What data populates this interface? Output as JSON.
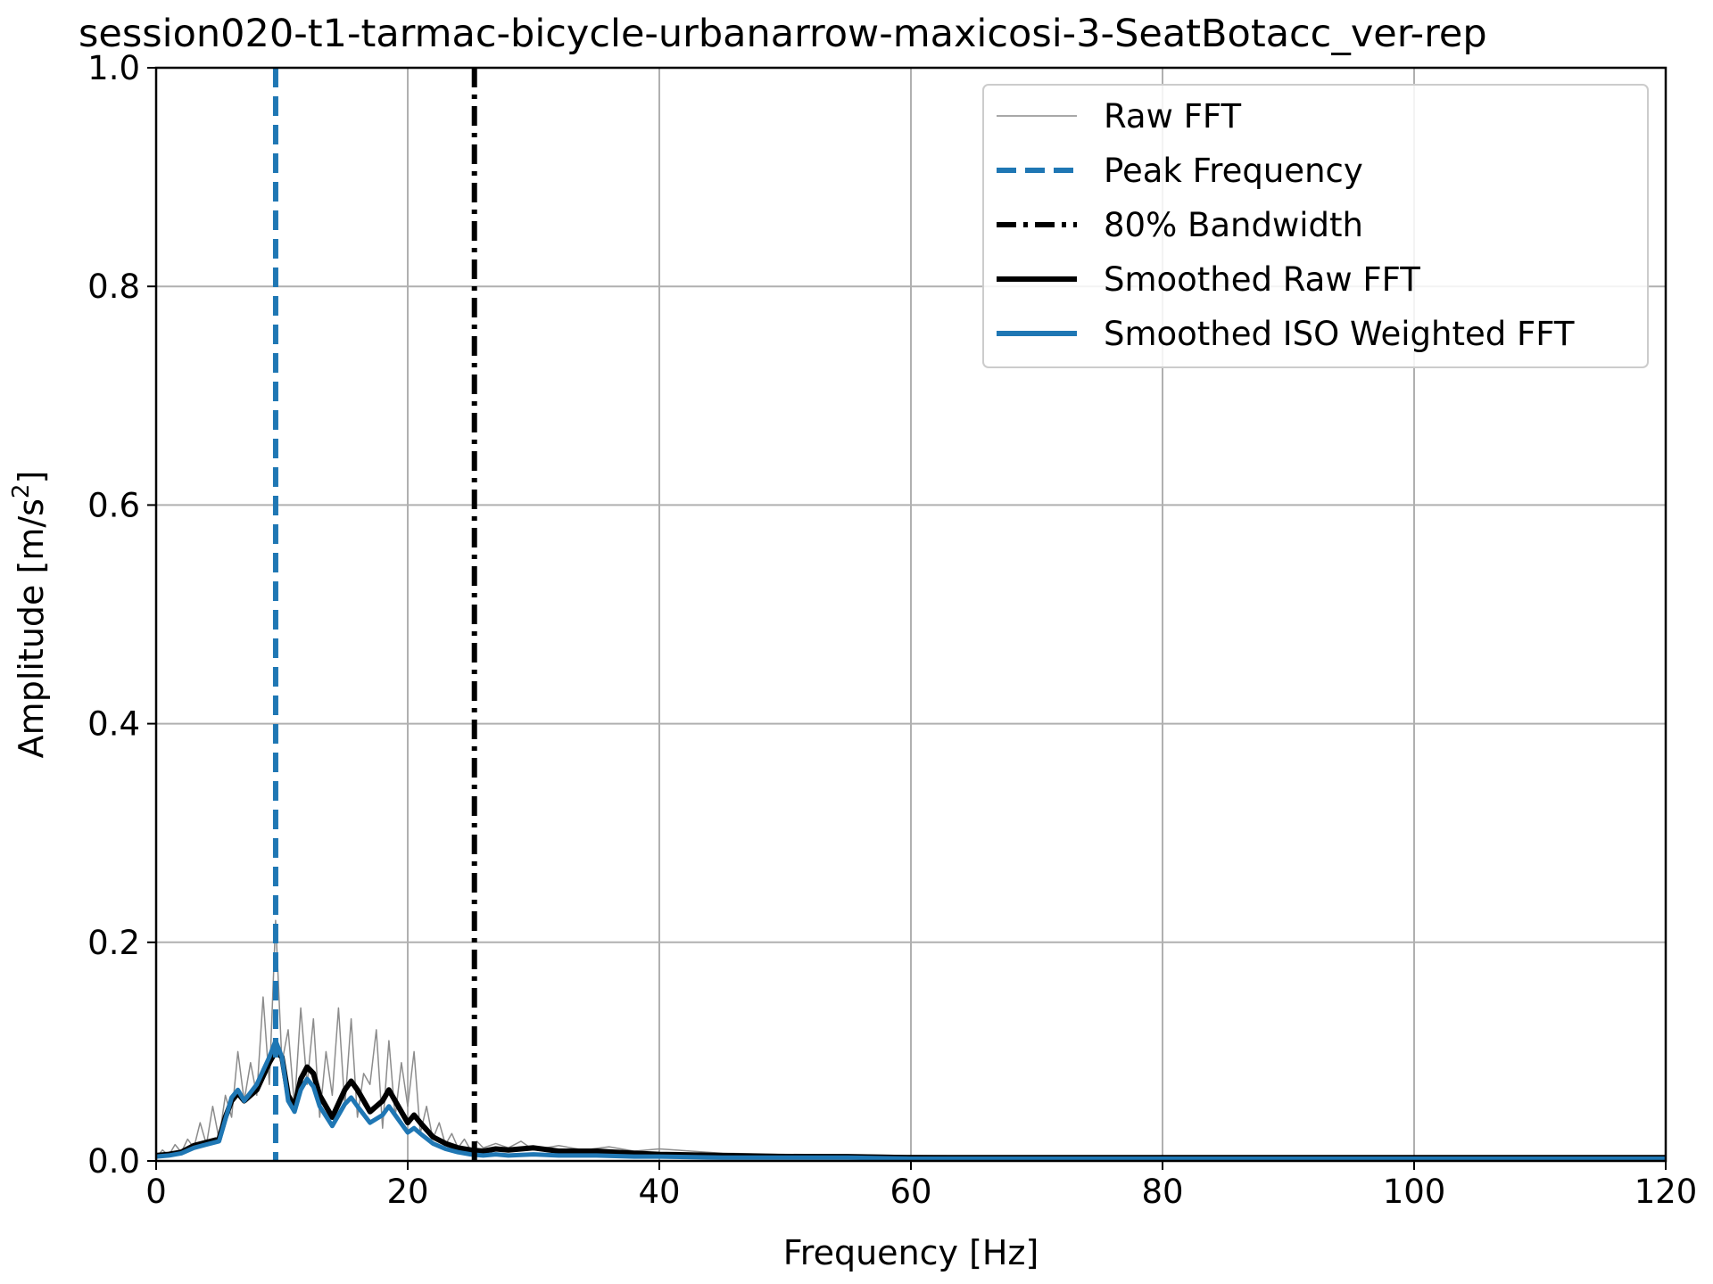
{
  "chart_data": {
    "type": "line",
    "title": "session020-t1-tarmac-bicycle-urbanarrow-maxicosi-3-SeatBotacc_ver-rep",
    "xlabel": "Frequency [Hz]",
    "ylabel_main": "Amplitude [m/s",
    "ylabel_sup": "2",
    "ylabel_close": "]",
    "xlim": [
      0,
      120
    ],
    "ylim": [
      0,
      1.0
    ],
    "xticks": [
      0,
      20,
      40,
      60,
      80,
      100,
      120
    ],
    "xtick_labels": [
      "0",
      "20",
      "40",
      "60",
      "80",
      "100",
      "120"
    ],
    "yticks": [
      0.0,
      0.2,
      0.4,
      0.6,
      0.8,
      1.0
    ],
    "ytick_labels": [
      "0.0",
      "0.2",
      "0.4",
      "0.6",
      "0.8",
      "1.0"
    ],
    "grid": true,
    "legend_position": "upper right",
    "peak_frequency": 9.5,
    "bandwidth_80": 25.3,
    "colors": {
      "raw": "#8c8c8c",
      "peak": "#1f77b4",
      "bandwidth": "#000000",
      "smoothed_raw": "#000000",
      "smoothed_iso": "#1f77b4",
      "grid": "#b0b0b0"
    },
    "legend": [
      {
        "label": "Raw FFT",
        "key": "raw"
      },
      {
        "label": "Peak Frequency",
        "key": "peak"
      },
      {
        "label": "80% Bandwidth",
        "key": "bandwidth"
      },
      {
        "label": "Smoothed Raw FFT",
        "key": "smoothed_raw"
      },
      {
        "label": "Smoothed ISO Weighted FFT",
        "key": "smoothed_iso"
      }
    ],
    "series": [
      {
        "name": "Raw FFT",
        "key": "raw",
        "x": [
          0,
          0.5,
          1,
          1.5,
          2,
          2.5,
          3,
          3.5,
          4,
          4.5,
          5,
          5.5,
          6,
          6.5,
          7,
          7.5,
          8,
          8.5,
          9,
          9.5,
          10,
          10.5,
          11,
          11.5,
          12,
          12.5,
          13,
          13.5,
          14,
          14.5,
          15,
          15.5,
          16,
          16.5,
          17,
          17.5,
          18,
          18.5,
          19,
          19.5,
          20,
          20.5,
          21,
          21.5,
          22,
          22.5,
          23,
          23.5,
          24,
          24.5,
          25,
          25.5,
          26,
          27,
          28,
          29,
          30,
          32,
          34,
          36,
          38,
          40,
          45,
          50,
          60,
          70,
          80,
          90,
          100,
          110,
          120
        ],
        "y": [
          0.003,
          0.01,
          0.005,
          0.015,
          0.008,
          0.02,
          0.012,
          0.035,
          0.015,
          0.05,
          0.02,
          0.06,
          0.04,
          0.1,
          0.055,
          0.09,
          0.06,
          0.15,
          0.07,
          0.22,
          0.09,
          0.12,
          0.05,
          0.14,
          0.07,
          0.13,
          0.04,
          0.1,
          0.06,
          0.14,
          0.05,
          0.13,
          0.04,
          0.08,
          0.07,
          0.12,
          0.03,
          0.11,
          0.04,
          0.09,
          0.05,
          0.1,
          0.025,
          0.05,
          0.02,
          0.035,
          0.015,
          0.025,
          0.012,
          0.02,
          0.01,
          0.018,
          0.012,
          0.016,
          0.012,
          0.018,
          0.01,
          0.014,
          0.01,
          0.013,
          0.009,
          0.011,
          0.007,
          0.006,
          0.005,
          0.004,
          0.004,
          0.003,
          0.003,
          0.003,
          0.002
        ]
      },
      {
        "name": "Smoothed Raw FFT",
        "key": "smoothed_raw",
        "x": [
          0,
          1,
          2,
          3,
          4,
          5,
          5.5,
          6,
          6.5,
          7,
          8,
          9,
          9.5,
          10,
          10.5,
          11,
          11.5,
          12,
          12.5,
          13,
          14,
          15,
          15.5,
          16,
          17,
          18,
          18.5,
          19,
          20,
          20.5,
          21,
          22,
          23,
          24,
          25,
          26,
          27,
          28,
          30,
          32,
          35,
          38,
          40,
          45,
          50,
          55,
          60,
          70,
          80,
          90,
          100,
          110,
          120
        ],
        "y": [
          0.005,
          0.006,
          0.008,
          0.014,
          0.017,
          0.02,
          0.04,
          0.055,
          0.062,
          0.055,
          0.065,
          0.09,
          0.1,
          0.095,
          0.06,
          0.05,
          0.075,
          0.086,
          0.08,
          0.06,
          0.04,
          0.065,
          0.073,
          0.065,
          0.045,
          0.055,
          0.065,
          0.055,
          0.035,
          0.042,
          0.035,
          0.022,
          0.016,
          0.012,
          0.01,
          0.009,
          0.011,
          0.01,
          0.012,
          0.009,
          0.009,
          0.007,
          0.006,
          0.005,
          0.004,
          0.004,
          0.003,
          0.003,
          0.003,
          0.003,
          0.003,
          0.003,
          0.003
        ]
      },
      {
        "name": "Smoothed ISO Weighted FFT",
        "key": "smoothed_iso",
        "x": [
          0,
          1,
          2,
          3,
          4,
          5,
          5.5,
          6,
          6.5,
          7,
          8,
          9,
          9.5,
          10,
          10.5,
          11,
          11.5,
          12,
          12.5,
          13,
          14,
          15,
          15.5,
          16,
          17,
          18,
          18.5,
          19,
          20,
          20.5,
          21,
          22,
          23,
          24,
          25,
          26,
          27,
          28,
          30,
          32,
          35,
          38,
          40,
          45,
          50,
          55,
          60,
          70,
          80,
          90,
          100,
          110,
          120
        ],
        "y": [
          0.004,
          0.005,
          0.007,
          0.012,
          0.015,
          0.018,
          0.038,
          0.058,
          0.065,
          0.055,
          0.07,
          0.095,
          0.11,
          0.095,
          0.055,
          0.045,
          0.065,
          0.075,
          0.068,
          0.05,
          0.032,
          0.052,
          0.058,
          0.05,
          0.035,
          0.042,
          0.05,
          0.042,
          0.026,
          0.03,
          0.025,
          0.016,
          0.011,
          0.008,
          0.006,
          0.005,
          0.006,
          0.005,
          0.006,
          0.005,
          0.005,
          0.004,
          0.004,
          0.003,
          0.003,
          0.003,
          0.002,
          0.002,
          0.002,
          0.002,
          0.002,
          0.002,
          0.002
        ]
      }
    ]
  }
}
